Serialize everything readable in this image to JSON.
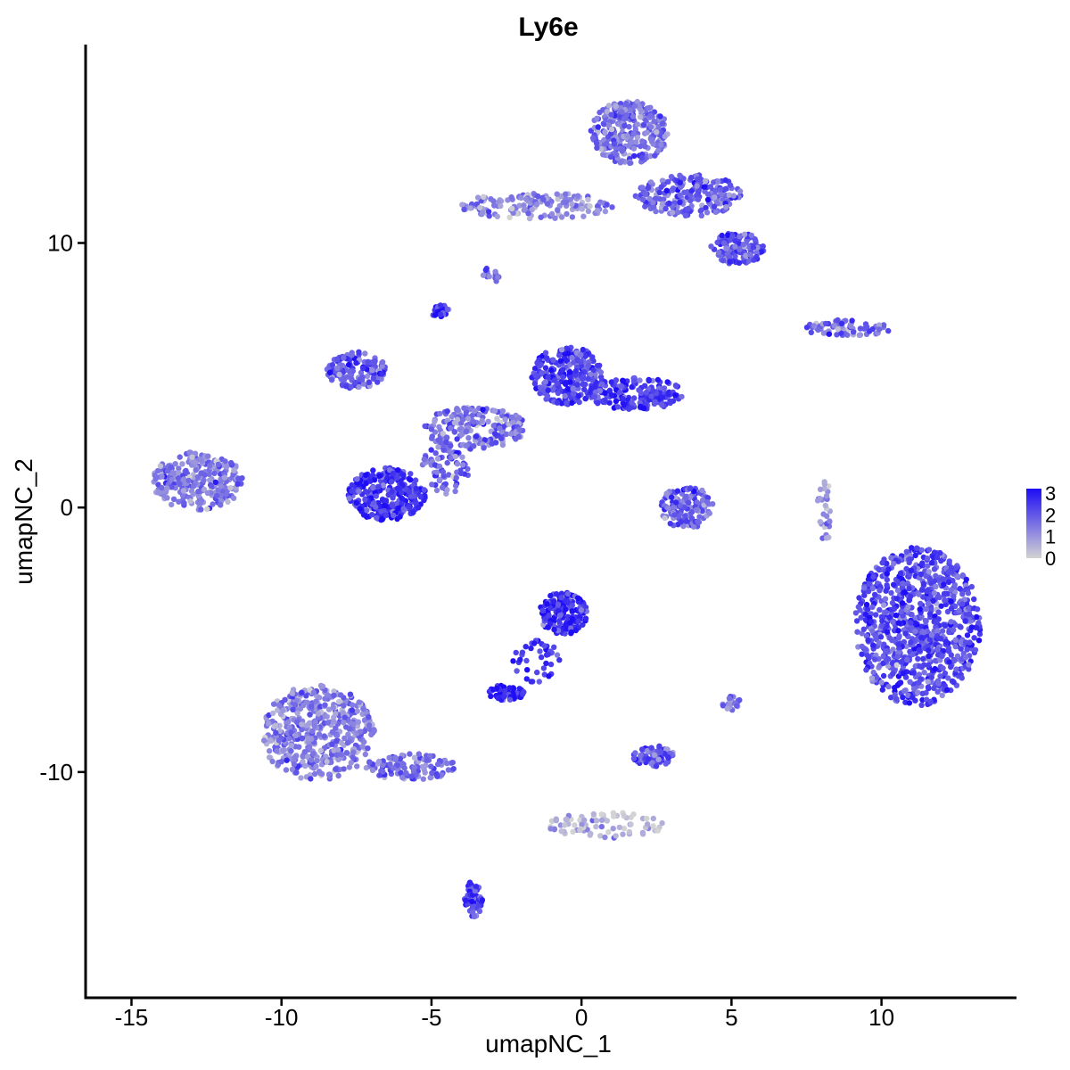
{
  "chart_data": {
    "type": "scatter",
    "title": "Ly6e",
    "xlabel": "umapNC_1",
    "ylabel": "umapNC_2",
    "xlim": [
      -16.5,
      14.5
    ],
    "ylim": [
      -18.5,
      17.5
    ],
    "xticks": [
      -15,
      -10,
      -5,
      0,
      5,
      10
    ],
    "xtick_labels": [
      "-15",
      "-10",
      "-5",
      "0",
      "5",
      "10"
    ],
    "yticks": [
      -10,
      0,
      10
    ],
    "ytick_labels": [
      "-10",
      "0",
      "10"
    ],
    "grid": false,
    "color_scale": {
      "low_color": "#d3d3d3",
      "high_color": "#1e0df5",
      "min": 0,
      "max": 3.2,
      "ticks": [
        0,
        1,
        2,
        3
      ],
      "tick_labels": [
        "0",
        "1",
        "2",
        "3"
      ],
      "legend_position": "right"
    },
    "clusters": [
      {
        "cx": 11.2,
        "cy": -4.5,
        "rx": 2.1,
        "ry": 3.0,
        "n": 900,
        "mean_expr": 2.2
      },
      {
        "cx": 1.6,
        "cy": 14.2,
        "rx": 1.3,
        "ry": 1.2,
        "n": 300,
        "mean_expr": 1.6
      },
      {
        "cx": 3.6,
        "cy": 11.8,
        "rx": 1.8,
        "ry": 0.8,
        "n": 200,
        "mean_expr": 1.9
      },
      {
        "cx": 5.2,
        "cy": 9.8,
        "rx": 0.9,
        "ry": 0.6,
        "n": 120,
        "mean_expr": 2.1
      },
      {
        "cx": -1.5,
        "cy": 11.4,
        "rx": 2.6,
        "ry": 0.5,
        "n": 160,
        "mean_expr": 1.2
      },
      {
        "cx": -12.8,
        "cy": 1.0,
        "rx": 1.5,
        "ry": 1.1,
        "n": 260,
        "mean_expr": 1.4
      },
      {
        "cx": -6.5,
        "cy": 0.5,
        "rx": 1.3,
        "ry": 1.0,
        "n": 300,
        "mean_expr": 2.6
      },
      {
        "cx": -0.5,
        "cy": 5.0,
        "rx": 1.2,
        "ry": 1.1,
        "n": 260,
        "mean_expr": 2.3
      },
      {
        "cx": 1.8,
        "cy": 4.3,
        "rx": 1.6,
        "ry": 0.6,
        "n": 200,
        "mean_expr": 2.4
      },
      {
        "cx": -7.5,
        "cy": 5.2,
        "rx": 1.0,
        "ry": 0.7,
        "n": 140,
        "mean_expr": 2.0
      },
      {
        "cx": -3.5,
        "cy": 3.0,
        "rx": 1.8,
        "ry": 0.8,
        "n": 200,
        "mean_expr": 1.5
      },
      {
        "cx": -4.5,
        "cy": 1.5,
        "rx": 0.8,
        "ry": 1.0,
        "n": 80,
        "mean_expr": 1.8
      },
      {
        "cx": 3.5,
        "cy": 0.0,
        "rx": 0.9,
        "ry": 0.8,
        "n": 140,
        "mean_expr": 1.8
      },
      {
        "cx": -0.6,
        "cy": -4.0,
        "rx": 0.8,
        "ry": 0.8,
        "n": 160,
        "mean_expr": 2.7
      },
      {
        "cx": -2.5,
        "cy": -7.0,
        "rx": 0.6,
        "ry": 0.3,
        "n": 60,
        "mean_expr": 3.0
      },
      {
        "cx": -1.5,
        "cy": -5.8,
        "rx": 0.8,
        "ry": 0.8,
        "n": 40,
        "mean_expr": 2.5
      },
      {
        "cx": -8.8,
        "cy": -8.5,
        "rx": 1.9,
        "ry": 1.8,
        "n": 500,
        "mean_expr": 1.3
      },
      {
        "cx": -5.7,
        "cy": -9.8,
        "rx": 1.5,
        "ry": 0.5,
        "n": 120,
        "mean_expr": 1.6
      },
      {
        "cx": -3.6,
        "cy": -14.8,
        "rx": 0.3,
        "ry": 0.7,
        "n": 60,
        "mean_expr": 2.4
      },
      {
        "cx": 2.4,
        "cy": -9.4,
        "rx": 0.7,
        "ry": 0.4,
        "n": 80,
        "mean_expr": 2.0
      },
      {
        "cx": 0.8,
        "cy": -12.0,
        "rx": 2.0,
        "ry": 0.5,
        "n": 80,
        "mean_expr": 0.5
      },
      {
        "cx": 8.8,
        "cy": 6.8,
        "rx": 1.6,
        "ry": 0.3,
        "n": 70,
        "mean_expr": 1.7
      },
      {
        "cx": 8.1,
        "cy": -0.2,
        "rx": 0.25,
        "ry": 1.2,
        "n": 30,
        "mean_expr": 1.2
      },
      {
        "cx": -4.7,
        "cy": 7.4,
        "rx": 0.3,
        "ry": 0.3,
        "n": 25,
        "mean_expr": 2.4
      },
      {
        "cx": -3.0,
        "cy": 8.8,
        "rx": 0.3,
        "ry": 0.3,
        "n": 15,
        "mean_expr": 1.8
      },
      {
        "cx": 5.0,
        "cy": -7.4,
        "rx": 0.3,
        "ry": 0.3,
        "n": 20,
        "mean_expr": 1.4
      }
    ]
  }
}
